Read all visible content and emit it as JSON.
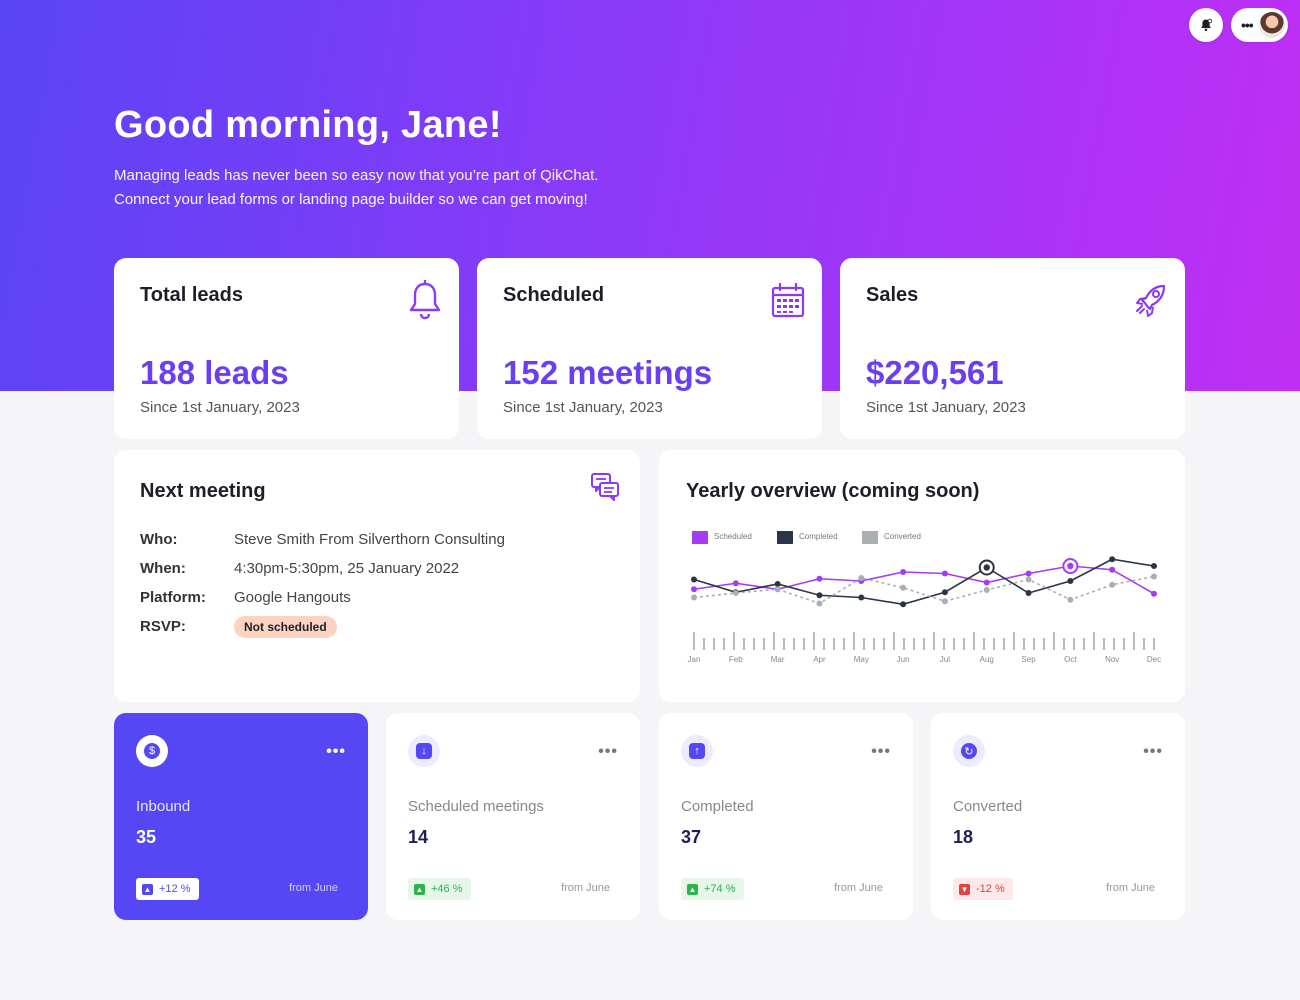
{
  "header": {
    "greeting": "Good morning, Jane!",
    "subtitle_line1": "Managing leads has never been so easy now that you’re part of QikChat.",
    "subtitle_line2": "Connect your lead forms or landing page builder so we can get moving!",
    "bell_icon": "bell-icon",
    "menu_icon": "more-dots-icon"
  },
  "stats": [
    {
      "title": "Total leads",
      "value": "188 leads",
      "since": "Since 1st January, 2023",
      "icon": "bell-icon"
    },
    {
      "title": "Scheduled",
      "value": "152 meetings",
      "since": "Since 1st January, 2023",
      "icon": "calendar-icon"
    },
    {
      "title": "Sales",
      "value": "$220,561",
      "since": "Since 1st January, 2023",
      "icon": "rocket-icon"
    }
  ],
  "next_meeting": {
    "title": "Next meeting",
    "who_label": "Who:",
    "who": "Steve Smith From Silverthorn Consulting",
    "when_label": "When:",
    "when": "4:30pm-5:30pm, 25 January 2022",
    "platform_label": "Platform:",
    "platform": "Google Hangouts",
    "rsvp_label": "RSVP:",
    "rsvp": "Not scheduled"
  },
  "yearly": {
    "title": "Yearly overview (coming soon)"
  },
  "chart_data": {
    "type": "line",
    "title": "Yearly overview (coming soon)",
    "categories": [
      "Jan",
      "Feb",
      "Mar",
      "Apr",
      "May",
      "Jun",
      "Jul",
      "Aug",
      "Sep",
      "Oct",
      "Nov",
      "Dec"
    ],
    "series": [
      {
        "name": "Scheduled",
        "color": "#a63bf4",
        "values": [
          41,
          49,
          41,
          55,
          52,
          64,
          62,
          50,
          62,
          72,
          67,
          35
        ]
      },
      {
        "name": "Completed",
        "color": "#2b3547",
        "values": [
          54,
          37,
          48,
          33,
          30,
          21,
          37,
          70,
          36,
          52,
          81,
          72
        ]
      },
      {
        "name": "Converted",
        "color": "#a8b0b4",
        "values": [
          30,
          36,
          41,
          22,
          56,
          43,
          25,
          40,
          54,
          27,
          47,
          58
        ]
      }
    ],
    "markers": [
      {
        "series": "Completed",
        "index": 7
      },
      {
        "series": "Scheduled",
        "index": 9
      }
    ],
    "legend": "top-left",
    "ylim": [
      0,
      100
    ]
  },
  "mini_cards": [
    {
      "label": "Inbound",
      "value": "35",
      "change": "+12 %",
      "from": "from June",
      "icon": "dollar-icon",
      "trend": "primary"
    },
    {
      "label": "Scheduled meetings",
      "value": "14",
      "change": "+46 %",
      "from": "from June",
      "icon": "arrow-down-icon",
      "trend": "up"
    },
    {
      "label": "Completed",
      "value": "37",
      "change": "+74 %",
      "from": "from June",
      "icon": "arrow-up-icon",
      "trend": "up"
    },
    {
      "label": "Converted",
      "value": "18",
      "change": "-12 %",
      "from": "from June",
      "icon": "refresh-icon",
      "trend": "down"
    }
  ]
}
